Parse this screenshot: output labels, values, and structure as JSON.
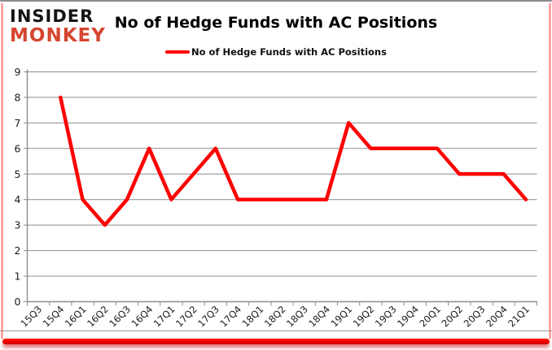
{
  "brand": {
    "line1": "INSIDER",
    "line2": "MONKEY"
  },
  "header": {
    "title": "No of Hedge Funds with AC Positions"
  },
  "legend": {
    "label": "No of Hedge Funds with AC Positions"
  },
  "colors": {
    "series": "#fe0000",
    "grid": "#8c8c8c",
    "axis": "#8c8c8c",
    "tick_text": "#1a1a1a",
    "brand_red": "#d6452f",
    "accent_bar": "#f20000"
  },
  "chart_data": {
    "type": "line",
    "title": "No of Hedge Funds with AC Positions",
    "xlabel": "",
    "ylabel": "",
    "ylim": [
      0,
      9
    ],
    "y_ticks": [
      0,
      1,
      2,
      3,
      4,
      5,
      6,
      7,
      8,
      9
    ],
    "grid": "horizontal",
    "legend_position": "top",
    "categories": [
      "15Q3",
      "15Q4",
      "16Q1",
      "16Q2",
      "16Q3",
      "16Q4",
      "17Q1",
      "17Q2",
      "17Q3",
      "17Q4",
      "18Q1",
      "18Q2",
      "18Q3",
      "18Q4",
      "19Q1",
      "19Q2",
      "19Q3",
      "19Q4",
      "20Q1",
      "20Q2",
      "20Q3",
      "20Q4",
      "21Q1"
    ],
    "series": [
      {
        "name": "No of Hedge Funds with AC Positions",
        "color": "#fe0000",
        "values": [
          null,
          8,
          4,
          3,
          4,
          6,
          4,
          5,
          6,
          4,
          4,
          4,
          4,
          4,
          7,
          6,
          6,
          6,
          6,
          5,
          5,
          5,
          4
        ]
      }
    ]
  }
}
